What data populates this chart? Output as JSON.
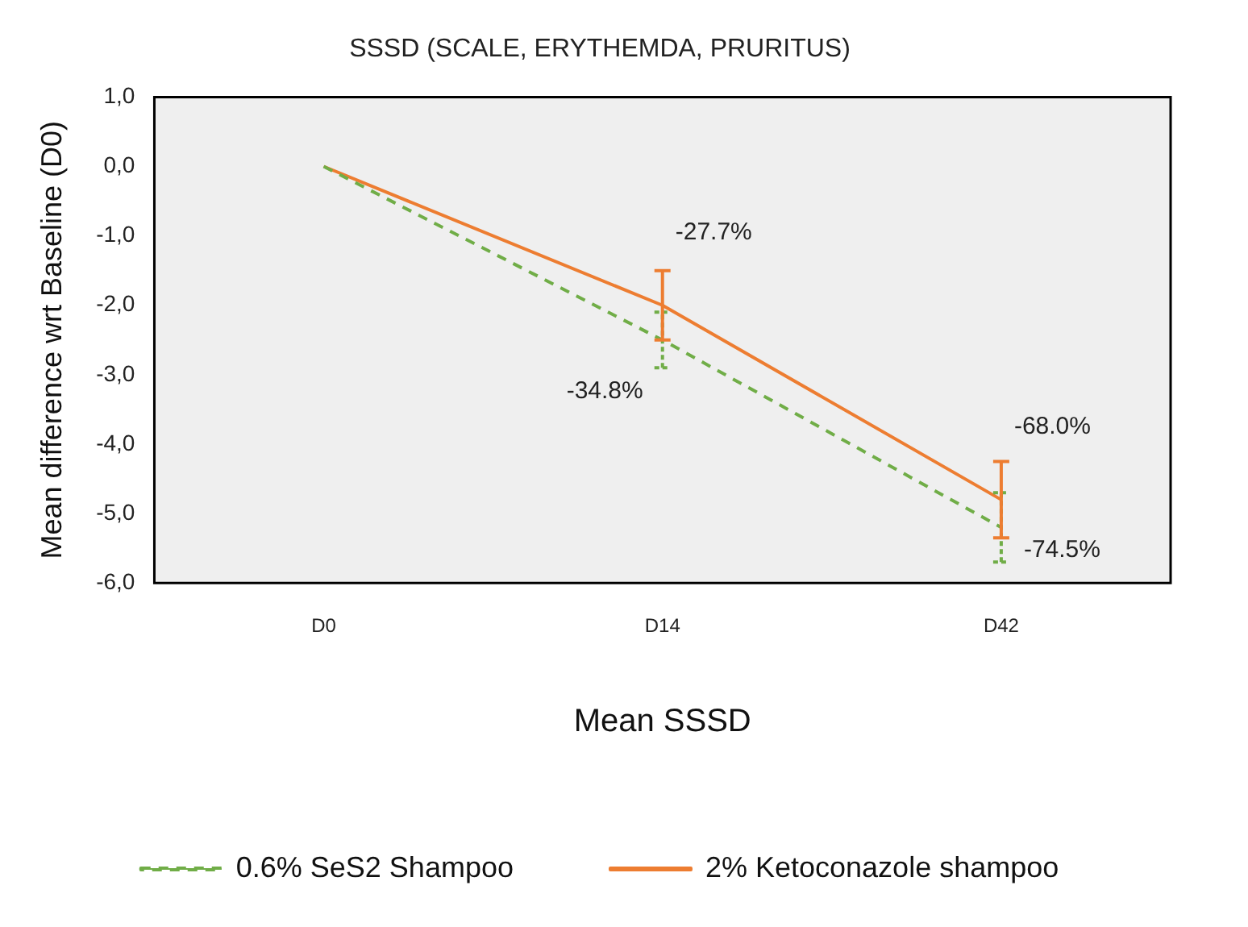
{
  "chart_data": {
    "type": "line",
    "title": "SSSD (SCALE, ERYTHEMDA, PRURITUS)",
    "xlabel": "Mean SSSD",
    "ylabel": "Mean difference wrt Baseline (D0)",
    "categories": [
      "D0",
      "D14",
      "D42"
    ],
    "series": [
      {
        "name": "0.6% SeS2 Shampoo",
        "color": "#70ad47",
        "line_style": "dashed",
        "values": [
          0,
          -2.5,
          -5.2
        ],
        "errors": [
          null,
          0.4,
          0.5
        ]
      },
      {
        "name": "2% Ketoconazole shampoo",
        "color": "#ed7d31",
        "line_style": "solid",
        "values": [
          0,
          -2.0,
          -4.8
        ],
        "errors": [
          null,
          0.5,
          0.55
        ]
      }
    ],
    "ylim": [
      -6,
      1
    ],
    "yticks": [
      {
        "value": 1,
        "label": "1,0"
      },
      {
        "value": 0,
        "label": "0,0"
      },
      {
        "value": -1,
        "label": "-1,0"
      },
      {
        "value": -2,
        "label": "-2,0"
      },
      {
        "value": -3,
        "label": "-3,0"
      },
      {
        "value": -4,
        "label": "-4,0"
      },
      {
        "value": -5,
        "label": "-5,0"
      },
      {
        "value": -6,
        "label": "-6,0"
      }
    ],
    "annotations": [
      {
        "text": "-27.7%",
        "x": "D14",
        "y": -2.0
      },
      {
        "text": "-34.8%",
        "x": "D14",
        "y": -2.5
      },
      {
        "text": "-68.0%",
        "x": "D42",
        "y": -4.8
      },
      {
        "text": "-74.5%",
        "x": "D42",
        "y": -5.2
      }
    ],
    "grid": false,
    "legend": "bottom",
    "marker": "none"
  }
}
